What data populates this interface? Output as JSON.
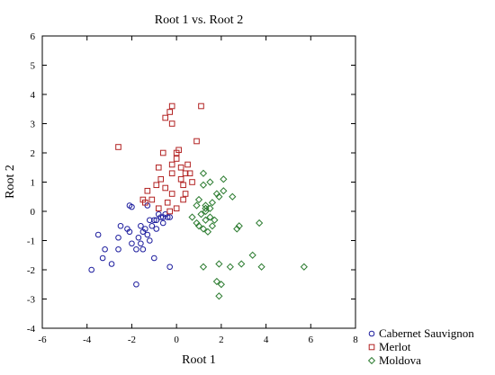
{
  "chart_data": {
    "type": "scatter",
    "title": "Root 1 vs. Root 2",
    "xlabel": "Root 1",
    "ylabel": "Root 2",
    "xlim": [
      -6,
      8
    ],
    "ylim": [
      -4,
      6
    ],
    "xticks": [
      -6,
      -4,
      -2,
      0,
      2,
      4,
      6,
      8
    ],
    "yticks": [
      -4,
      -3,
      -2,
      -1,
      0,
      1,
      2,
      3,
      4,
      5,
      6
    ],
    "grid": false,
    "legend_position": "bottom-right-outside",
    "series": [
      {
        "name": "Cabernet Sauvignon",
        "marker": "circle",
        "color": "#1e1e9e",
        "points": [
          [
            -3.8,
            -2.0
          ],
          [
            -3.3,
            -1.6
          ],
          [
            -3.2,
            -1.3
          ],
          [
            -3.5,
            -0.8
          ],
          [
            -2.9,
            -1.8
          ],
          [
            -2.6,
            -1.3
          ],
          [
            -2.5,
            -0.5
          ],
          [
            -2.2,
            -0.6
          ],
          [
            -2.6,
            -0.9
          ],
          [
            -2.1,
            -0.7
          ],
          [
            -2.0,
            -1.1
          ],
          [
            -1.8,
            -1.3
          ],
          [
            -1.7,
            -0.9
          ],
          [
            -1.6,
            -1.1
          ],
          [
            -1.5,
            -0.7
          ],
          [
            -1.4,
            -0.6
          ],
          [
            -1.3,
            -0.8
          ],
          [
            -1.2,
            -1.0
          ],
          [
            -1.1,
            -0.5
          ],
          [
            -1.0,
            -0.3
          ],
          [
            -0.9,
            -0.3
          ],
          [
            -0.8,
            -0.1
          ],
          [
            -0.7,
            -0.2
          ],
          [
            -0.6,
            -0.2
          ],
          [
            -0.5,
            -0.1
          ],
          [
            -0.4,
            -0.2
          ],
          [
            -0.3,
            -0.2
          ],
          [
            -2.1,
            0.2
          ],
          [
            -2.0,
            0.15
          ],
          [
            -1.3,
            0.2
          ],
          [
            -1.2,
            -0.3
          ],
          [
            -0.9,
            -0.6
          ],
          [
            -1.5,
            -1.3
          ],
          [
            -1.0,
            -1.6
          ],
          [
            -0.3,
            -1.9
          ],
          [
            -1.8,
            -2.5
          ],
          [
            -0.6,
            -0.4
          ],
          [
            -1.6,
            -0.5
          ]
        ]
      },
      {
        "name": "Merlot",
        "marker": "square",
        "color": "#b22222",
        "points": [
          [
            -2.6,
            2.2
          ],
          [
            -0.5,
            3.2
          ],
          [
            -0.3,
            3.4
          ],
          [
            -0.2,
            3.0
          ],
          [
            -0.2,
            3.6
          ],
          [
            1.1,
            3.6
          ],
          [
            -0.6,
            2.0
          ],
          [
            0.0,
            2.0
          ],
          [
            0.0,
            1.8
          ],
          [
            0.1,
            2.1
          ],
          [
            0.9,
            2.4
          ],
          [
            -0.2,
            1.6
          ],
          [
            0.2,
            1.5
          ],
          [
            0.4,
            1.3
          ],
          [
            0.5,
            1.6
          ],
          [
            0.6,
            1.3
          ],
          [
            -0.8,
            1.5
          ],
          [
            -0.7,
            1.1
          ],
          [
            0.2,
            1.1
          ],
          [
            0.3,
            0.9
          ],
          [
            -0.9,
            0.9
          ],
          [
            -0.5,
            0.8
          ],
          [
            -0.2,
            0.6
          ],
          [
            0.3,
            0.4
          ],
          [
            -1.5,
            0.4
          ],
          [
            -1.3,
            0.7
          ],
          [
            -1.1,
            0.4
          ],
          [
            -0.4,
            0.3
          ],
          [
            -0.8,
            0.1
          ],
          [
            0.0,
            0.1
          ],
          [
            0.4,
            0.6
          ],
          [
            0.7,
            1.0
          ],
          [
            -0.2,
            1.3
          ],
          [
            -1.4,
            0.3
          ],
          [
            -0.3,
            0.0
          ]
        ]
      },
      {
        "name": "Moldova",
        "marker": "diamond",
        "color": "#2e7d32",
        "points": [
          [
            1.2,
            1.3
          ],
          [
            1.5,
            1.0
          ],
          [
            2.1,
            1.1
          ],
          [
            1.2,
            0.9
          ],
          [
            1.8,
            0.6
          ],
          [
            2.1,
            0.7
          ],
          [
            2.5,
            0.5
          ],
          [
            1.9,
            0.5
          ],
          [
            1.0,
            0.4
          ],
          [
            1.6,
            0.3
          ],
          [
            0.9,
            0.2
          ],
          [
            1.3,
            0.1
          ],
          [
            1.5,
            0.1
          ],
          [
            1.3,
            0.0
          ],
          [
            1.1,
            -0.1
          ],
          [
            0.7,
            -0.2
          ],
          [
            1.5,
            -0.2
          ],
          [
            1.3,
            -0.3
          ],
          [
            0.9,
            -0.4
          ],
          [
            1.0,
            -0.5
          ],
          [
            1.2,
            -0.6
          ],
          [
            1.4,
            -0.7
          ],
          [
            1.6,
            -0.5
          ],
          [
            2.7,
            -0.6
          ],
          [
            2.8,
            -0.5
          ],
          [
            3.7,
            -0.4
          ],
          [
            3.4,
            -1.5
          ],
          [
            2.4,
            -1.9
          ],
          [
            2.9,
            -1.8
          ],
          [
            3.8,
            -1.9
          ],
          [
            1.2,
            -1.9
          ],
          [
            1.9,
            -1.8
          ],
          [
            5.7,
            -1.9
          ],
          [
            1.8,
            -2.4
          ],
          [
            2.0,
            -2.5
          ],
          [
            1.9,
            -2.9
          ],
          [
            1.3,
            0.2
          ],
          [
            1.7,
            -0.3
          ]
        ]
      }
    ]
  }
}
